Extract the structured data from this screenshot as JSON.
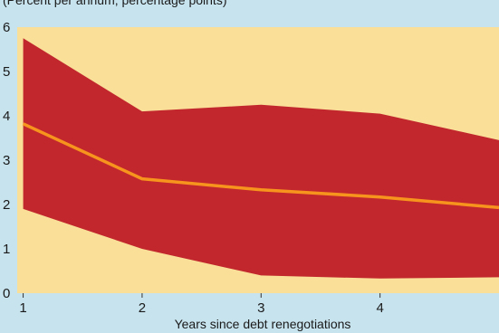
{
  "chart_data": {
    "type": "area",
    "subtitle": "(Percent per annum; percentage points)",
    "xlabel": "Years since debt renegotiations",
    "ylabel": "",
    "x": [
      1,
      2,
      3,
      4,
      5
    ],
    "x_tick_labels": [
      "1",
      "2",
      "3",
      "4"
    ],
    "ylim": [
      0,
      6
    ],
    "xlim": [
      0.95,
      5
    ],
    "y_ticks": [
      0,
      1,
      2,
      3,
      4,
      5,
      6
    ],
    "grid": false,
    "series": [
      {
        "role": "band-upper",
        "values": [
          5.75,
          4.1,
          4.25,
          4.05,
          3.45
        ]
      },
      {
        "role": "band-lower",
        "values": [
          1.9,
          1.0,
          0.4,
          0.33,
          0.36
        ]
      },
      {
        "role": "line",
        "values": [
          3.82,
          2.58,
          2.33,
          2.17,
          1.93
        ]
      }
    ],
    "colors": {
      "background": "#c7e3ee",
      "plot_area": "#f9df98",
      "band": "#c1272d",
      "line": "#f7941d"
    }
  }
}
